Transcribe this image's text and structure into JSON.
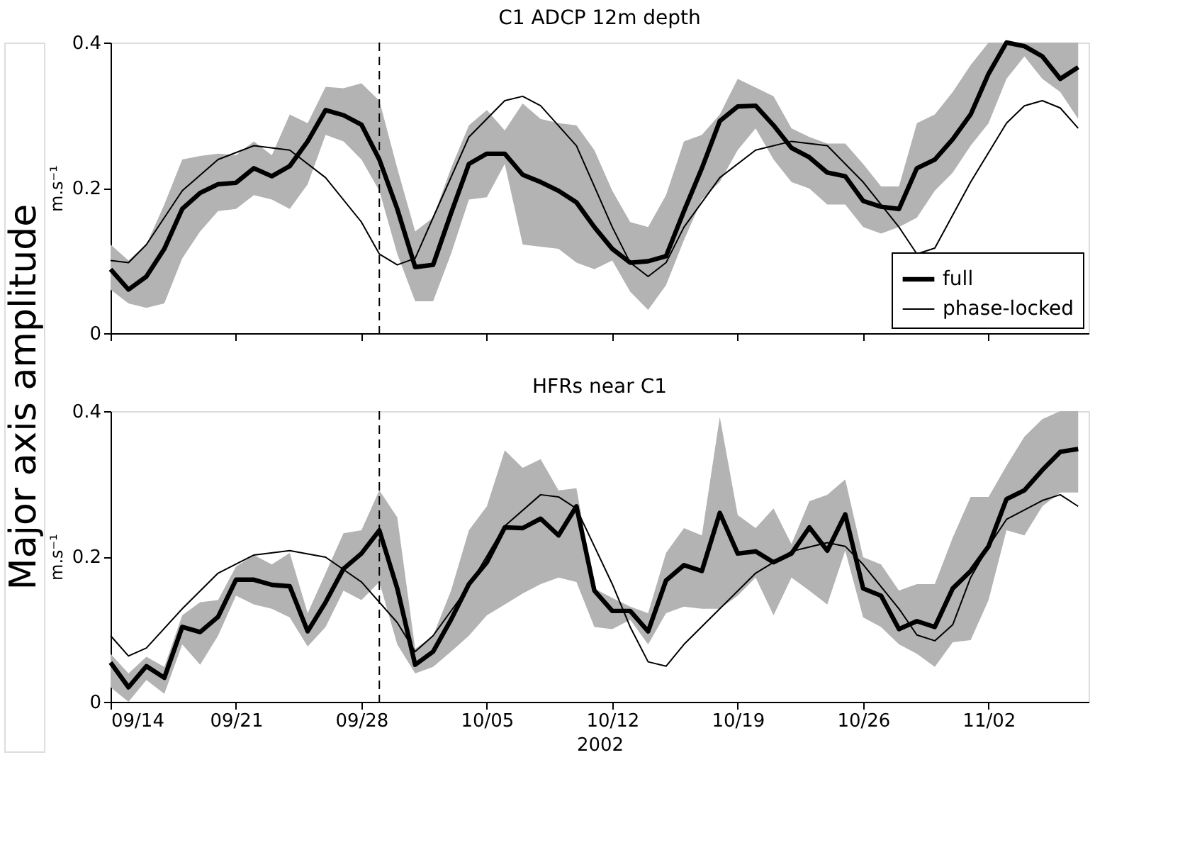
{
  "chart_data": [
    {
      "type": "line",
      "title": "C1 ADCP 12m depth",
      "ylabel": "m.s⁻¹",
      "annotations": [
        "Major axis amplitude"
      ],
      "x": [
        "2002-09-14",
        "2002-09-15",
        "2002-09-16",
        "2002-09-17",
        "2002-09-18",
        "2002-09-19",
        "2002-09-20",
        "2002-09-21",
        "2002-09-22",
        "2002-09-23",
        "2002-09-24",
        "2002-09-25",
        "2002-09-26",
        "2002-09-27",
        "2002-09-28",
        "2002-09-29",
        "2002-09-30",
        "2002-10-01",
        "2002-10-02",
        "2002-10-03",
        "2002-10-04",
        "2002-10-05",
        "2002-10-06",
        "2002-10-07",
        "2002-10-08",
        "2002-10-09",
        "2002-10-10",
        "2002-10-11",
        "2002-10-12",
        "2002-10-13",
        "2002-10-14",
        "2002-10-15",
        "2002-10-16",
        "2002-10-17",
        "2002-10-18",
        "2002-10-19",
        "2002-10-20",
        "2002-10-21",
        "2002-10-22",
        "2002-10-23",
        "2002-10-24",
        "2002-10-25",
        "2002-10-26",
        "2002-10-27",
        "2002-10-28",
        "2002-10-29",
        "2002-10-30",
        "2002-10-31",
        "2002-11-01",
        "2002-11-02",
        "2002-11-03",
        "2002-11-04",
        "2002-11-05",
        "2002-11-06",
        "2002-11-07"
      ],
      "series": [
        {
          "name": "full",
          "color": "#000000",
          "values": [
            0.088,
            0.06,
            0.078,
            0.116,
            0.171,
            0.193,
            0.205,
            0.207,
            0.227,
            0.216,
            0.23,
            0.264,
            0.307,
            0.3,
            0.287,
            0.239,
            0.171,
            0.091,
            0.094,
            0.165,
            0.233,
            0.247,
            0.247,
            0.218,
            0.208,
            0.196,
            0.18,
            0.146,
            0.116,
            0.097,
            0.099,
            0.106,
            0.168,
            0.227,
            0.292,
            0.312,
            0.313,
            0.286,
            0.255,
            0.242,
            0.221,
            0.216,
            0.182,
            0.174,
            0.171,
            0.227,
            0.239,
            0.267,
            0.301,
            0.357,
            0.4,
            0.395,
            0.381,
            0.35,
            0.366
          ],
          "lower": [
            0.06,
            0.041,
            0.035,
            0.041,
            0.103,
            0.14,
            0.168,
            0.171,
            0.19,
            0.184,
            0.171,
            0.205,
            0.273,
            0.264,
            0.239,
            0.196,
            0.109,
            0.044,
            0.044,
            0.109,
            0.184,
            0.187,
            0.233,
            0.122,
            0.119,
            0.116,
            0.097,
            0.088,
            0.1,
            0.057,
            0.032,
            0.066,
            0.128,
            0.184,
            0.208,
            0.252,
            0.282,
            0.239,
            0.208,
            0.199,
            0.177,
            0.177,
            0.146,
            0.137,
            0.146,
            0.159,
            0.196,
            0.221,
            0.258,
            0.289,
            0.35,
            0.381,
            0.35,
            0.332,
            0.295
          ],
          "upper": [
            0.122,
            0.1,
            0.122,
            0.177,
            0.239,
            0.244,
            0.247,
            0.245,
            0.264,
            0.245,
            0.301,
            0.289,
            0.339,
            0.337,
            0.344,
            0.32,
            0.227,
            0.14,
            0.159,
            0.227,
            0.286,
            0.307,
            0.279,
            0.316,
            0.295,
            0.289,
            0.286,
            0.252,
            0.196,
            0.153,
            0.146,
            0.19,
            0.264,
            0.273,
            0.301,
            0.35,
            0.338,
            0.326,
            0.282,
            0.27,
            0.261,
            0.261,
            0.233,
            0.202,
            0.202,
            0.289,
            0.301,
            0.332,
            0.369,
            0.4,
            0.4,
            0.4,
            0.4,
            0.4,
            0.4
          ]
        },
        {
          "name": "phase-locked",
          "color": "#000000",
          "x": [
            "2002-09-14",
            "2002-09-15",
            "2002-09-16",
            "2002-09-18",
            "2002-09-20",
            "2002-09-22",
            "2002-09-24",
            "2002-09-26",
            "2002-09-28",
            "2002-09-29",
            "2002-09-30",
            "2002-10-01",
            "2002-10-02",
            "2002-10-04",
            "2002-10-06",
            "2002-10-07",
            "2002-10-08",
            "2002-10-10",
            "2002-10-12",
            "2002-10-13",
            "2002-10-14",
            "2002-10-15",
            "2002-10-16",
            "2002-10-18",
            "2002-10-20",
            "2002-10-22",
            "2002-10-24",
            "2002-10-26",
            "2002-10-28",
            "2002-10-29",
            "2002-10-30",
            "2002-11-01",
            "2002-11-03",
            "2002-11-04",
            "2002-11-05",
            "2002-11-06",
            "2002-11-07"
          ],
          "values": [
            0.1,
            0.097,
            0.122,
            0.196,
            0.239,
            0.258,
            0.252,
            0.214,
            0.153,
            0.109,
            0.094,
            0.103,
            0.159,
            0.27,
            0.32,
            0.326,
            0.313,
            0.258,
            0.146,
            0.097,
            0.078,
            0.097,
            0.146,
            0.214,
            0.252,
            0.264,
            0.258,
            0.208,
            0.146,
            0.109,
            0.117,
            0.208,
            0.289,
            0.313,
            0.32,
            0.31,
            0.282
          ]
        }
      ],
      "xlim": [
        "2002-09-14",
        "2002-11-07T14:00"
      ],
      "xticks": [
        {
          "value": "2002-09-14",
          "label": null
        },
        {
          "value": "2002-09-21",
          "label": null
        },
        {
          "value": "2002-09-28",
          "label": null
        },
        {
          "value": "2002-10-05",
          "label": null
        },
        {
          "value": "2002-10-12",
          "label": null
        },
        {
          "value": "2002-10-19",
          "label": null
        },
        {
          "value": "2002-10-26",
          "label": null
        },
        {
          "value": "2002-11-02",
          "label": null
        }
      ],
      "ylim": [
        0,
        0.4
      ],
      "yticks": [
        0,
        0.2,
        0.4
      ],
      "tick_labels": "y",
      "grid": false,
      "legend": "bottom right",
      "ref_lines": [
        {
          "axis": "x",
          "value": "2002-09-29",
          "color": "#000000",
          "line_style": "dashed"
        }
      ]
    },
    {
      "type": "line",
      "title": "HFRs near C1",
      "ylabel": "m.s⁻¹",
      "xlabel": "2002",
      "x": [
        "2002-09-14",
        "2002-09-15",
        "2002-09-16",
        "2002-09-17",
        "2002-09-18",
        "2002-09-19",
        "2002-09-20",
        "2002-09-21",
        "2002-09-22",
        "2002-09-23",
        "2002-09-24",
        "2002-09-25",
        "2002-09-26",
        "2002-09-27",
        "2002-09-28",
        "2002-09-29",
        "2002-09-30",
        "2002-10-01",
        "2002-10-02",
        "2002-10-03",
        "2002-10-04",
        "2002-10-05",
        "2002-10-06",
        "2002-10-07",
        "2002-10-08",
        "2002-10-09",
        "2002-10-10",
        "2002-10-11",
        "2002-10-12",
        "2002-10-13",
        "2002-10-14",
        "2002-10-15",
        "2002-10-16",
        "2002-10-17",
        "2002-10-18",
        "2002-10-19",
        "2002-10-20",
        "2002-10-21",
        "2002-10-22",
        "2002-10-23",
        "2002-10-24",
        "2002-10-25",
        "2002-10-26",
        "2002-10-27",
        "2002-10-28",
        "2002-10-29",
        "2002-10-30",
        "2002-10-31",
        "2002-11-01",
        "2002-11-02",
        "2002-11-03",
        "2002-11-04",
        "2002-11-05",
        "2002-11-06",
        "2002-11-07"
      ],
      "series": [
        {
          "color": "#000000",
          "values": [
            0.054,
            0.02,
            0.049,
            0.033,
            0.103,
            0.096,
            0.117,
            0.168,
            0.168,
            0.161,
            0.159,
            0.097,
            0.137,
            0.183,
            0.204,
            0.236,
            0.156,
            0.051,
            0.069,
            0.113,
            0.162,
            0.192,
            0.24,
            0.239,
            0.252,
            0.229,
            0.269,
            0.153,
            0.125,
            0.125,
            0.097,
            0.167,
            0.188,
            0.18,
            0.26,
            0.204,
            0.207,
            0.192,
            0.204,
            0.24,
            0.208,
            0.258,
            0.156,
            0.146,
            0.1,
            0.111,
            0.103,
            0.156,
            0.18,
            0.214,
            0.279,
            0.291,
            0.319,
            0.344,
            0.348
          ],
          "lower": [
            0.02,
            0.0,
            0.03,
            0.011,
            0.079,
            0.051,
            0.091,
            0.146,
            0.134,
            0.128,
            0.116,
            0.076,
            0.103,
            0.153,
            0.14,
            0.165,
            0.079,
            0.039,
            0.048,
            0.069,
            0.091,
            0.119,
            0.134,
            0.149,
            0.162,
            0.171,
            0.165,
            0.103,
            0.1,
            0.113,
            0.079,
            0.122,
            0.131,
            0.128,
            0.128,
            0.146,
            0.171,
            0.119,
            0.171,
            0.153,
            0.134,
            0.208,
            0.116,
            0.103,
            0.079,
            0.066,
            0.048,
            0.082,
            0.085,
            0.14,
            0.236,
            0.229,
            0.269,
            0.288,
            0.288
          ],
          "upper": [
            0.066,
            0.039,
            0.062,
            0.048,
            0.119,
            0.137,
            0.14,
            0.186,
            0.202,
            0.189,
            0.205,
            0.122,
            0.177,
            0.232,
            0.236,
            0.291,
            0.254,
            0.073,
            0.091,
            0.153,
            0.236,
            0.269,
            0.346,
            0.322,
            0.334,
            0.291,
            0.294,
            0.156,
            0.143,
            0.131,
            0.122,
            0.205,
            0.239,
            0.229,
            0.392,
            0.257,
            0.239,
            0.266,
            0.217,
            0.276,
            0.285,
            0.306,
            0.199,
            0.189,
            0.153,
            0.162,
            0.162,
            0.226,
            0.282,
            0.282,
            0.325,
            0.365,
            0.389,
            0.4,
            0.4
          ]
        },
        {
          "color": "#000000",
          "x": [
            "2002-09-14",
            "2002-09-15",
            "2002-09-16",
            "2002-09-18",
            "2002-09-20",
            "2002-09-22",
            "2002-09-24",
            "2002-09-26",
            "2002-09-28",
            "2002-09-30",
            "2002-10-01",
            "2002-10-02",
            "2002-10-04",
            "2002-10-06",
            "2002-10-08",
            "2002-10-09",
            "2002-10-10",
            "2002-10-11",
            "2002-10-12",
            "2002-10-13",
            "2002-10-14",
            "2002-10-15",
            "2002-10-16",
            "2002-10-18",
            "2002-10-20",
            "2002-10-22",
            "2002-10-24",
            "2002-10-25",
            "2002-10-26",
            "2002-10-28",
            "2002-10-29",
            "2002-10-30",
            "2002-10-31",
            "2002-11-01",
            "2002-11-02",
            "2002-11-03",
            "2002-11-05",
            "2002-11-06",
            "2002-11-07"
          ],
          "values": [
            0.091,
            0.063,
            0.074,
            0.128,
            0.177,
            0.202,
            0.208,
            0.199,
            0.165,
            0.109,
            0.069,
            0.091,
            0.159,
            0.242,
            0.285,
            0.282,
            0.266,
            0.214,
            0.162,
            0.103,
            0.055,
            0.049,
            0.079,
            0.128,
            0.177,
            0.207,
            0.219,
            0.214,
            0.189,
            0.128,
            0.092,
            0.084,
            0.106,
            0.171,
            0.214,
            0.251,
            0.277,
            0.285,
            0.269
          ]
        }
      ],
      "xlim": [
        "2002-09-14",
        "2002-11-07T14:00"
      ],
      "xticks": [
        {
          "value": "2002-09-14",
          "label": "09/14"
        },
        {
          "value": "2002-09-21",
          "label": "09/21"
        },
        {
          "value": "2002-09-28",
          "label": "09/28"
        },
        {
          "value": "2002-10-05",
          "label": "10/05"
        },
        {
          "value": "2002-10-12",
          "label": "10/12"
        },
        {
          "value": "2002-10-19",
          "label": "10/19"
        },
        {
          "value": "2002-10-26",
          "label": "10/26"
        },
        {
          "value": "2002-11-02",
          "label": "11/02"
        }
      ],
      "ylim": [
        0,
        0.4
      ],
      "yticks": [
        0,
        0.2,
        0.4
      ],
      "grid": false,
      "ref_lines": [
        {
          "axis": "x",
          "value": "2002-09-29",
          "color": "#000000",
          "line_style": "dashed"
        }
      ]
    }
  ]
}
